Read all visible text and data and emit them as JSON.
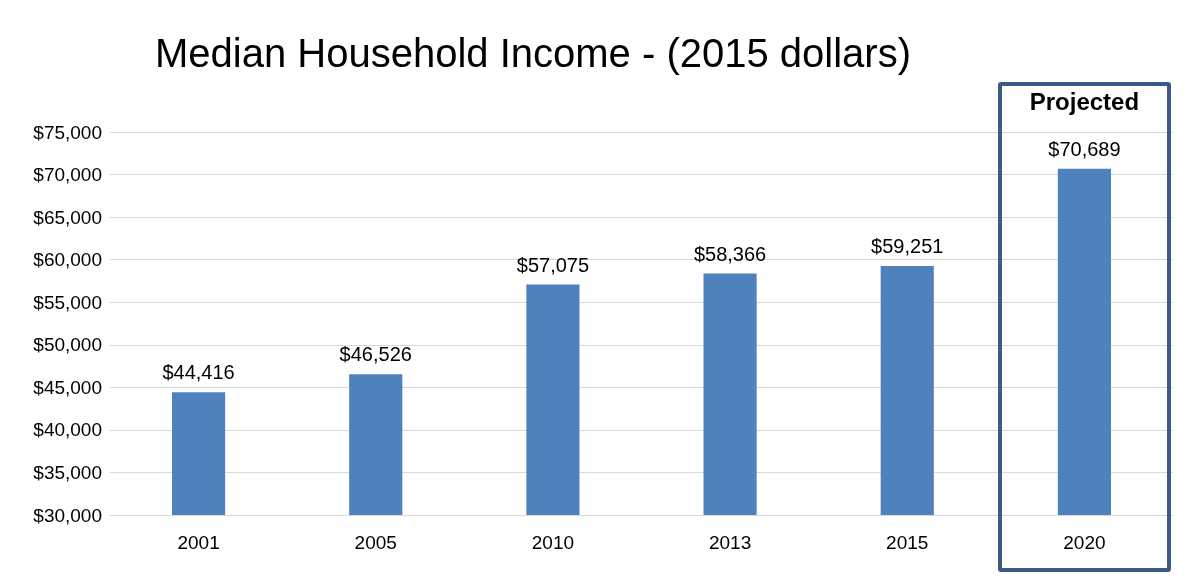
{
  "chart_data": {
    "type": "bar",
    "title": "Median Household Income - (2015 dollars)",
    "categories": [
      "2001",
      "2005",
      "2010",
      "2013",
      "2015",
      "2020"
    ],
    "values": [
      44416,
      46526,
      57075,
      58366,
      59251,
      70689
    ],
    "value_labels": [
      "$44,416",
      "$46,526",
      "$57,075",
      "$58,366",
      "$59,251",
      "$70,689"
    ],
    "color": "#4f81bd",
    "ylim": [
      30000,
      75000
    ],
    "yticks": [
      {
        "value": 30000,
        "label": "$30,000"
      },
      {
        "value": 35000,
        "label": "$35,000"
      },
      {
        "value": 40000,
        "label": "$40,000"
      },
      {
        "value": 45000,
        "label": "$45,000"
      },
      {
        "value": 50000,
        "label": "$50,000"
      },
      {
        "value": 55000,
        "label": "$55,000"
      },
      {
        "value": 60000,
        "label": "$60,000"
      },
      {
        "value": 65000,
        "label": "$65,000"
      },
      {
        "value": 70000,
        "label": "$70,000"
      },
      {
        "value": 75000,
        "label": "$75,000"
      }
    ],
    "grid": "y",
    "annotations": [
      "Projected"
    ]
  }
}
